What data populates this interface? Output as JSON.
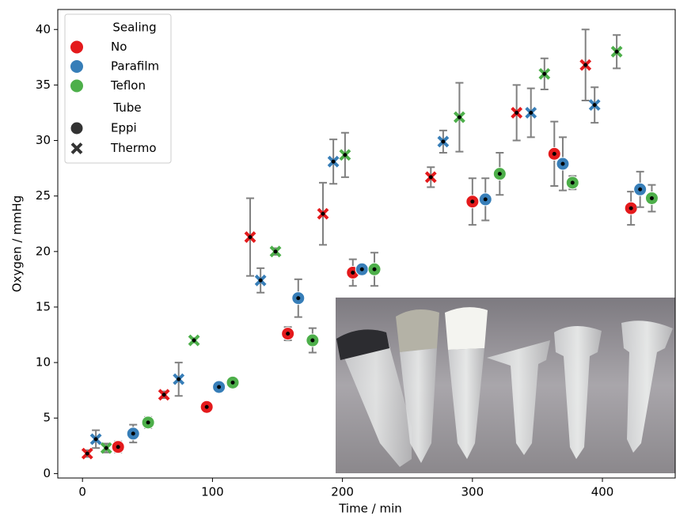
{
  "chart_data": {
    "type": "scatter",
    "x_label": "Time / min",
    "y_label": "Oxygen / mmHg",
    "xlim": [
      -19,
      456
    ],
    "ylim": [
      -0.4,
      41.8
    ],
    "xticks": [
      0,
      100,
      200,
      300,
      400
    ],
    "yticks": [
      0,
      5,
      10,
      15,
      20,
      25,
      30,
      35,
      40
    ],
    "error_color": "#808080",
    "legend": {
      "position": "upper left",
      "hue_title": "Sealing",
      "hue": [
        {
          "name": "No",
          "color": "#e41a1c"
        },
        {
          "name": "Parafilm",
          "color": "#377eb8"
        },
        {
          "name": "Teflon",
          "color": "#4daf4a"
        }
      ],
      "style_title": "Tube",
      "style": [
        {
          "name": "Eppi",
          "marker": "circle"
        },
        {
          "name": "Thermo",
          "marker": "x"
        }
      ]
    },
    "series": [
      {
        "sealing": "No",
        "tube": "Thermo",
        "x": [
          3.7,
          62.7,
          129,
          185,
          268,
          334,
          387
        ],
        "values": [
          1.8,
          7.1,
          21.3,
          23.4,
          26.7,
          32.5,
          36.8
        ],
        "errors": [
          0.3,
          0.3,
          3.5,
          2.8,
          0.9,
          2.5,
          3.2
        ]
      },
      {
        "sealing": "Parafilm",
        "tube": "Thermo",
        "x": [
          10.3,
          74,
          137,
          193,
          277.5,
          345,
          394
        ],
        "values": [
          3.1,
          8.5,
          17.4,
          28.1,
          29.9,
          32.5,
          33.2
        ],
        "errors": [
          0.8,
          1.5,
          1.1,
          2.0,
          1.0,
          2.2,
          1.6
        ]
      },
      {
        "sealing": "Teflon",
        "tube": "Thermo",
        "x": [
          18.3,
          85.8,
          148.5,
          202,
          290,
          355.4,
          411
        ],
        "values": [
          2.3,
          12.0,
          20.0,
          28.7,
          32.1,
          36.0,
          38.0
        ],
        "errors": [
          0.4,
          0.2,
          0.3,
          2.0,
          3.1,
          1.4,
          1.5
        ]
      },
      {
        "sealing": "No",
        "tube": "Eppi",
        "x": [
          27.4,
          95.6,
          158,
          208,
          300,
          363,
          422
        ],
        "values": [
          2.4,
          6.0,
          12.6,
          18.1,
          24.5,
          28.8,
          23.9
        ],
        "errors": [
          0.5,
          0.2,
          0.6,
          1.2,
          2.1,
          2.9,
          1.5
        ]
      },
      {
        "sealing": "Parafilm",
        "tube": "Eppi",
        "x": [
          39,
          105,
          166,
          215,
          310,
          369.5,
          429
        ],
        "values": [
          3.6,
          7.8,
          15.8,
          18.4,
          24.7,
          27.9,
          25.6
        ],
        "errors": [
          0.8,
          0.3,
          1.7,
          0.2,
          1.9,
          2.4,
          1.6
        ]
      },
      {
        "sealing": "Teflon",
        "tube": "Eppi",
        "x": [
          50.5,
          115.6,
          177,
          224.6,
          321,
          377,
          438
        ],
        "values": [
          4.6,
          8.2,
          12.0,
          18.4,
          27.0,
          26.2,
          24.8
        ],
        "errors": [
          0.5,
          0.3,
          1.1,
          1.5,
          1.9,
          0.6,
          1.2
        ]
      }
    ]
  }
}
